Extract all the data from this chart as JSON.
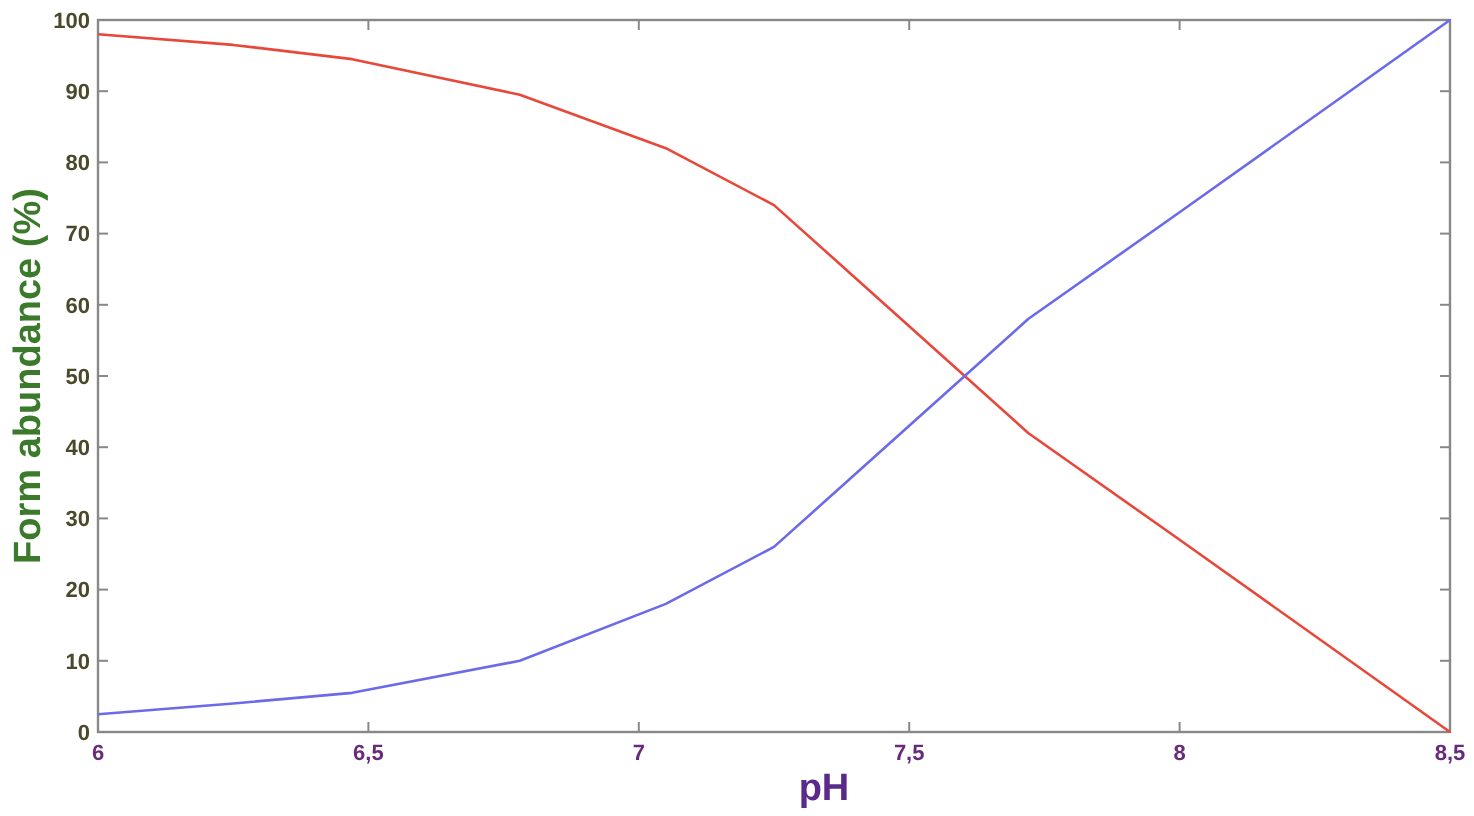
{
  "chart_data": {
    "type": "line",
    "xlabel": "pH",
    "ylabel": "Form abundance (%)",
    "xlim": [
      6,
      8.5
    ],
    "xticks": [
      6,
      {
        "value": 6.5,
        "label": "6,5"
      },
      7,
      {
        "value": 7.5,
        "label": "7,5"
      },
      8,
      {
        "value": 8.5,
        "label": "8,5"
      }
    ],
    "ylim": [
      0,
      100
    ],
    "yticks": [
      0,
      10,
      20,
      30,
      40,
      50,
      60,
      70,
      80,
      90,
      100
    ],
    "grid": false,
    "marker": "none",
    "line_style": "solid",
    "series": [
      {
        "color": "#e8483a",
        "x": [
          6,
          6.25,
          6.47,
          6.78,
          7.05,
          7.25,
          7.5,
          7.72,
          8,
          8.5
        ],
        "values": [
          98,
          96.5,
          94.5,
          89.5,
          82,
          74,
          57,
          42,
          27,
          0
        ]
      },
      {
        "color": "#6b6bea",
        "x": [
          6,
          6.25,
          6.47,
          6.78,
          7.05,
          7.25,
          7.5,
          7.72,
          8,
          8.5
        ],
        "values": [
          2.5,
          4,
          5.5,
          10,
          18,
          26,
          43,
          58,
          73,
          100
        ]
      }
    ]
  }
}
